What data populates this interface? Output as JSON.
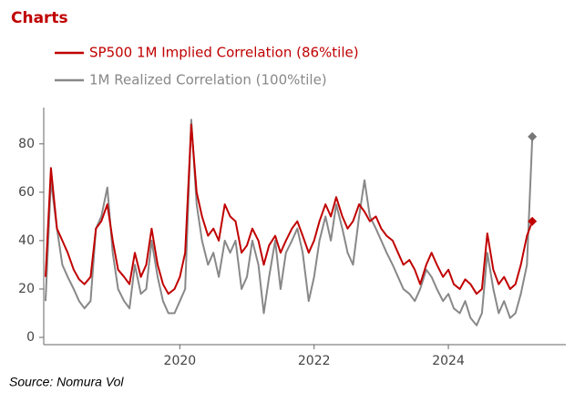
{
  "chart_data": {
    "type": "line",
    "title": "Charts",
    "source": "Source: Nomura Vol",
    "x": [
      2018,
      2018.08,
      2018.17,
      2018.25,
      2018.33,
      2018.42,
      2018.5,
      2018.58,
      2018.67,
      2018.75,
      2018.83,
      2018.92,
      2019,
      2019.08,
      2019.17,
      2019.25,
      2019.33,
      2019.42,
      2019.5,
      2019.58,
      2019.67,
      2019.75,
      2019.83,
      2019.92,
      2020,
      2020.08,
      2020.17,
      2020.25,
      2020.33,
      2020.42,
      2020.5,
      2020.58,
      2020.67,
      2020.75,
      2020.83,
      2020.92,
      2021,
      2021.08,
      2021.17,
      2021.25,
      2021.33,
      2021.42,
      2021.5,
      2021.58,
      2021.67,
      2021.75,
      2021.83,
      2021.92,
      2022,
      2022.08,
      2022.17,
      2022.25,
      2022.33,
      2022.42,
      2022.5,
      2022.58,
      2022.67,
      2022.75,
      2022.83,
      2022.92,
      2023,
      2023.08,
      2023.17,
      2023.25,
      2023.33,
      2023.42,
      2023.5,
      2023.58,
      2023.67,
      2023.75,
      2023.83,
      2023.92,
      2024,
      2024.08,
      2024.17,
      2024.25,
      2024.33,
      2024.42,
      2024.5,
      2024.58,
      2024.67,
      2024.75,
      2024.83,
      2024.92,
      2025,
      2025.08,
      2025.17,
      2025.25
    ],
    "series": [
      {
        "name": "SP500 1M Implied Correlation (86%tile)",
        "color": "#c00000",
        "values": [
          25,
          70,
          45,
          40,
          35,
          28,
          24,
          22,
          25,
          45,
          48,
          55,
          40,
          28,
          25,
          22,
          35,
          25,
          30,
          45,
          30,
          22,
          18,
          20,
          25,
          35,
          88,
          60,
          50,
          42,
          45,
          40,
          55,
          50,
          48,
          35,
          38,
          45,
          40,
          30,
          38,
          42,
          35,
          40,
          45,
          48,
          42,
          35,
          40,
          48,
          55,
          50,
          58,
          50,
          45,
          48,
          55,
          52,
          48,
          50,
          45,
          42,
          40,
          35,
          30,
          32,
          28,
          22,
          30,
          35,
          30,
          25,
          28,
          22,
          20,
          24,
          22,
          18,
          20,
          43,
          28,
          22,
          25,
          20,
          22,
          30,
          42,
          48
        ]
      },
      {
        "name": "1M Realized Correlation (100%tile)",
        "color": "#888888",
        "values": [
          15,
          65,
          45,
          30,
          25,
          20,
          15,
          12,
          15,
          45,
          50,
          62,
          35,
          20,
          15,
          12,
          30,
          18,
          20,
          40,
          25,
          15,
          10,
          10,
          15,
          20,
          90,
          55,
          40,
          30,
          35,
          25,
          40,
          35,
          40,
          20,
          25,
          40,
          30,
          10,
          25,
          40,
          20,
          35,
          40,
          45,
          35,
          15,
          25,
          40,
          50,
          40,
          55,
          45,
          35,
          30,
          50,
          65,
          50,
          45,
          40,
          35,
          30,
          25,
          20,
          18,
          15,
          20,
          28,
          25,
          20,
          15,
          18,
          12,
          10,
          15,
          8,
          5,
          10,
          35,
          20,
          10,
          15,
          8,
          10,
          18,
          30,
          83
        ]
      }
    ],
    "xlim": [
      2018,
      2025.75
    ],
    "xticks": [
      2020,
      2022,
      2024
    ],
    "ylim": [
      -3,
      95
    ],
    "yticks": [
      0,
      20,
      40,
      60,
      80
    ]
  }
}
